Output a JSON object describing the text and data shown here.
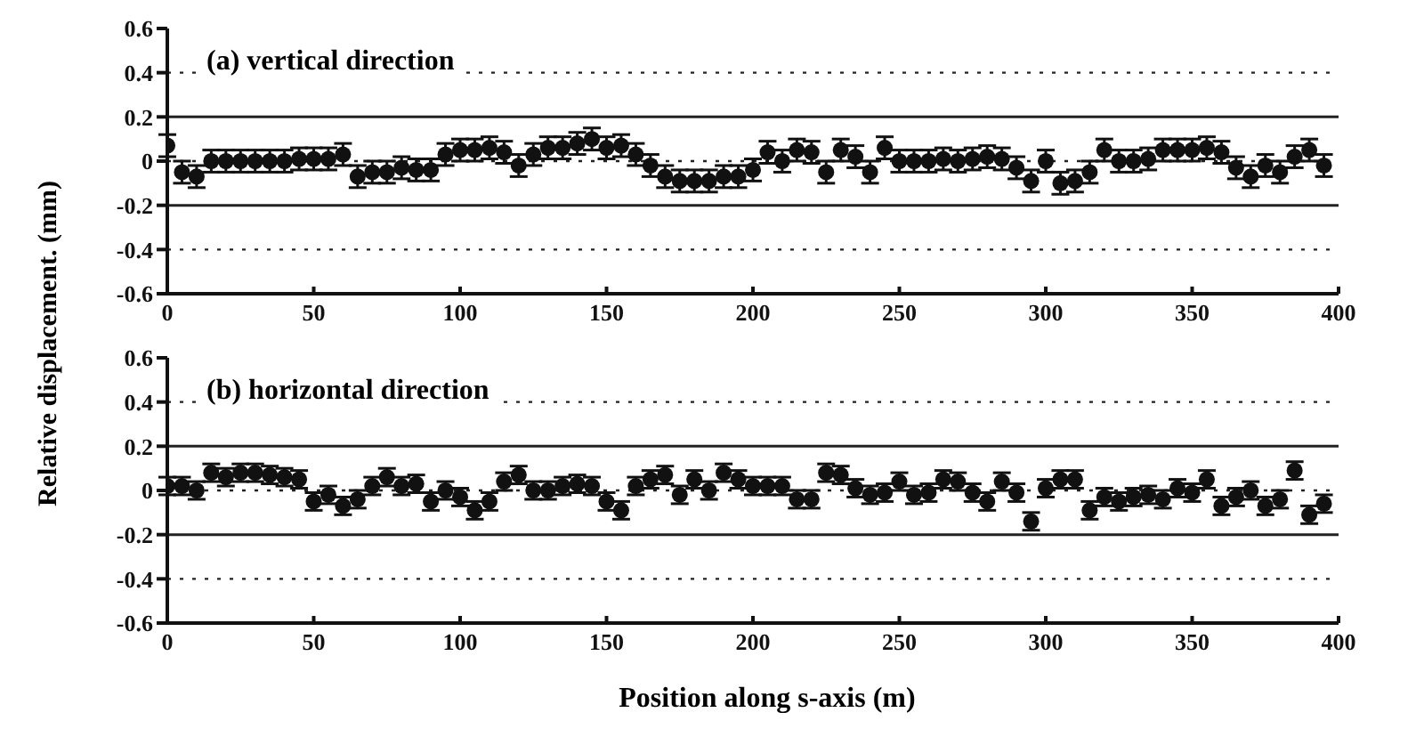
{
  "chart_data": [
    {
      "type": "scatter",
      "title": "(a) vertical direction",
      "ylabel": "Relative displacement.  (mm)",
      "marker": "circle",
      "xlim": [
        0,
        400
      ],
      "xticks": [
        0,
        50,
        100,
        150,
        200,
        250,
        300,
        350,
        400
      ],
      "ylim": [
        -0.6,
        0.6
      ],
      "yticks": [
        0.6,
        0.4,
        0.2,
        0,
        -0.2,
        -0.4,
        -0.6
      ],
      "grid": false,
      "legend": false,
      "ref_lines": [
        {
          "axis": "y",
          "value": 0.4,
          "line_style": "dotted"
        },
        {
          "axis": "y",
          "value": 0.2,
          "line_style": "solid"
        },
        {
          "axis": "y",
          "value": 0,
          "line_style": "dotted"
        },
        {
          "axis": "y",
          "value": -0.2,
          "line_style": "solid"
        },
        {
          "axis": "y",
          "value": -0.4,
          "line_style": "dotted"
        }
      ],
      "series": [
        {
          "color": "#111111",
          "x": [
            0,
            5,
            10,
            15,
            20,
            25,
            30,
            35,
            40,
            45,
            50,
            55,
            60,
            65,
            70,
            75,
            80,
            85,
            90,
            95,
            100,
            105,
            110,
            115,
            120,
            125,
            130,
            135,
            140,
            145,
            150,
            155,
            160,
            165,
            170,
            175,
            180,
            185,
            190,
            195,
            200,
            205,
            210,
            215,
            220,
            225,
            230,
            235,
            240,
            245,
            250,
            255,
            260,
            265,
            270,
            275,
            280,
            285,
            290,
            295,
            300,
            305,
            310,
            315,
            320,
            325,
            330,
            335,
            340,
            345,
            350,
            355,
            360,
            365,
            370,
            375,
            380,
            385,
            390,
            395
          ],
          "values": [
            0.07,
            -0.05,
            -0.07,
            0,
            0,
            0,
            0,
            0,
            0,
            0.01,
            0.01,
            0.01,
            0.03,
            -0.07,
            -0.05,
            -0.05,
            -0.03,
            -0.04,
            -0.04,
            0.03,
            0.05,
            0.05,
            0.06,
            0.04,
            -0.02,
            0.03,
            0.06,
            0.06,
            0.08,
            0.1,
            0.06,
            0.07,
            0.03,
            -0.02,
            -0.07,
            -0.09,
            -0.09,
            -0.09,
            -0.07,
            -0.07,
            -0.04,
            0.04,
            0,
            0.05,
            0.04,
            -0.05,
            0.05,
            0.02,
            -0.05,
            0.06,
            0,
            0,
            0,
            0.01,
            0,
            0.01,
            0.02,
            0.01,
            -0.03,
            -0.09,
            0,
            -0.1,
            -0.09,
            -0.05,
            0.05,
            0,
            0,
            0.01,
            0.05,
            0.05,
            0.05,
            0.06,
            0.04,
            -0.03,
            -0.07,
            -0.02,
            -0.05,
            0.02,
            0.05,
            -0.02
          ],
          "errors": [
            0.05,
            0.05,
            0.05,
            0.05,
            0.05,
            0.05,
            0.05,
            0.05,
            0.05,
            0.05,
            0.05,
            0.05,
            0.05,
            0.05,
            0.05,
            0.05,
            0.05,
            0.05,
            0.05,
            0.05,
            0.05,
            0.05,
            0.05,
            0.05,
            0.05,
            0.05,
            0.05,
            0.05,
            0.05,
            0.05,
            0.05,
            0.05,
            0.05,
            0.05,
            0.05,
            0.05,
            0.05,
            0.05,
            0.05,
            0.05,
            0.05,
            0.05,
            0.05,
            0.05,
            0.05,
            0.05,
            0.05,
            0.05,
            0.05,
            0.05,
            0.05,
            0.05,
            0.05,
            0.05,
            0.05,
            0.05,
            0.05,
            0.05,
            0.05,
            0.05,
            0.05,
            0.05,
            0.05,
            0.05,
            0.05,
            0.05,
            0.05,
            0.05,
            0.05,
            0.05,
            0.05,
            0.05,
            0.05,
            0.05,
            0.05,
            0.05,
            0.05,
            0.05,
            0.05,
            0.05
          ]
        }
      ]
    },
    {
      "type": "scatter",
      "title": "(b) horizontal direction",
      "xlabel": "Position along s-axis  (m)",
      "marker": "circle",
      "xlim": [
        0,
        400
      ],
      "xticks": [
        0,
        50,
        100,
        150,
        200,
        250,
        300,
        350,
        400
      ],
      "ylim": [
        -0.6,
        0.6
      ],
      "yticks": [
        0.6,
        0.4,
        0.2,
        0,
        -0.2,
        -0.4,
        -0.6
      ],
      "grid": false,
      "legend": false,
      "ref_lines": [
        {
          "axis": "y",
          "value": 0.4,
          "line_style": "dotted"
        },
        {
          "axis": "y",
          "value": 0.2,
          "line_style": "solid"
        },
        {
          "axis": "y",
          "value": 0,
          "line_style": "dotted"
        },
        {
          "axis": "y",
          "value": -0.2,
          "line_style": "solid"
        },
        {
          "axis": "y",
          "value": -0.4,
          "line_style": "dotted"
        }
      ],
      "series": [
        {
          "color": "#111111",
          "x": [
            0,
            5,
            10,
            15,
            20,
            25,
            30,
            35,
            40,
            45,
            50,
            55,
            60,
            65,
            70,
            75,
            80,
            85,
            90,
            95,
            100,
            105,
            110,
            115,
            120,
            125,
            130,
            135,
            140,
            145,
            150,
            155,
            160,
            165,
            170,
            175,
            180,
            185,
            190,
            195,
            200,
            205,
            210,
            215,
            220,
            225,
            230,
            235,
            240,
            245,
            250,
            255,
            260,
            265,
            270,
            275,
            280,
            285,
            290,
            295,
            300,
            305,
            310,
            315,
            320,
            325,
            330,
            335,
            340,
            345,
            350,
            355,
            360,
            365,
            370,
            375,
            380,
            385,
            390,
            395
          ],
          "values": [
            0.02,
            0.02,
            0,
            0.08,
            0.06,
            0.08,
            0.08,
            0.07,
            0.06,
            0.05,
            -0.05,
            -0.02,
            -0.07,
            -0.04,
            0.02,
            0.06,
            0.02,
            0.03,
            -0.05,
            0,
            -0.03,
            -0.09,
            -0.05,
            0.04,
            0.07,
            0,
            0,
            0.02,
            0.03,
            0.02,
            -0.05,
            -0.09,
            0.02,
            0.05,
            0.07,
            -0.02,
            0.05,
            0,
            0.08,
            0.05,
            0.02,
            0.02,
            0.02,
            -0.04,
            -0.04,
            0.08,
            0.07,
            0.01,
            -0.02,
            -0.01,
            0.04,
            -0.02,
            -0.01,
            0.05,
            0.04,
            -0.01,
            -0.05,
            0.04,
            -0.01,
            -0.14,
            0.01,
            0.05,
            0.05,
            -0.09,
            -0.03,
            -0.05,
            -0.03,
            -0.02,
            -0.04,
            0.01,
            -0.01,
            0.05,
            -0.07,
            -0.03,
            0,
            -0.07,
            -0.04,
            0.09,
            -0.11,
            -0.06
          ],
          "errors": [
            0.04,
            0.04,
            0.04,
            0.04,
            0.04,
            0.04,
            0.04,
            0.04,
            0.04,
            0.04,
            0.04,
            0.04,
            0.04,
            0.04,
            0.04,
            0.04,
            0.04,
            0.04,
            0.04,
            0.04,
            0.04,
            0.04,
            0.04,
            0.04,
            0.04,
            0.04,
            0.04,
            0.04,
            0.04,
            0.04,
            0.04,
            0.04,
            0.04,
            0.04,
            0.04,
            0.04,
            0.04,
            0.04,
            0.04,
            0.04,
            0.04,
            0.04,
            0.04,
            0.04,
            0.04,
            0.04,
            0.04,
            0.04,
            0.04,
            0.04,
            0.04,
            0.04,
            0.04,
            0.04,
            0.04,
            0.04,
            0.04,
            0.04,
            0.04,
            0.04,
            0.04,
            0.04,
            0.04,
            0.04,
            0.04,
            0.04,
            0.04,
            0.04,
            0.04,
            0.04,
            0.04,
            0.04,
            0.04,
            0.04,
            0.04,
            0.04,
            0.04,
            0.04,
            0.04,
            0.04
          ]
        }
      ]
    }
  ]
}
